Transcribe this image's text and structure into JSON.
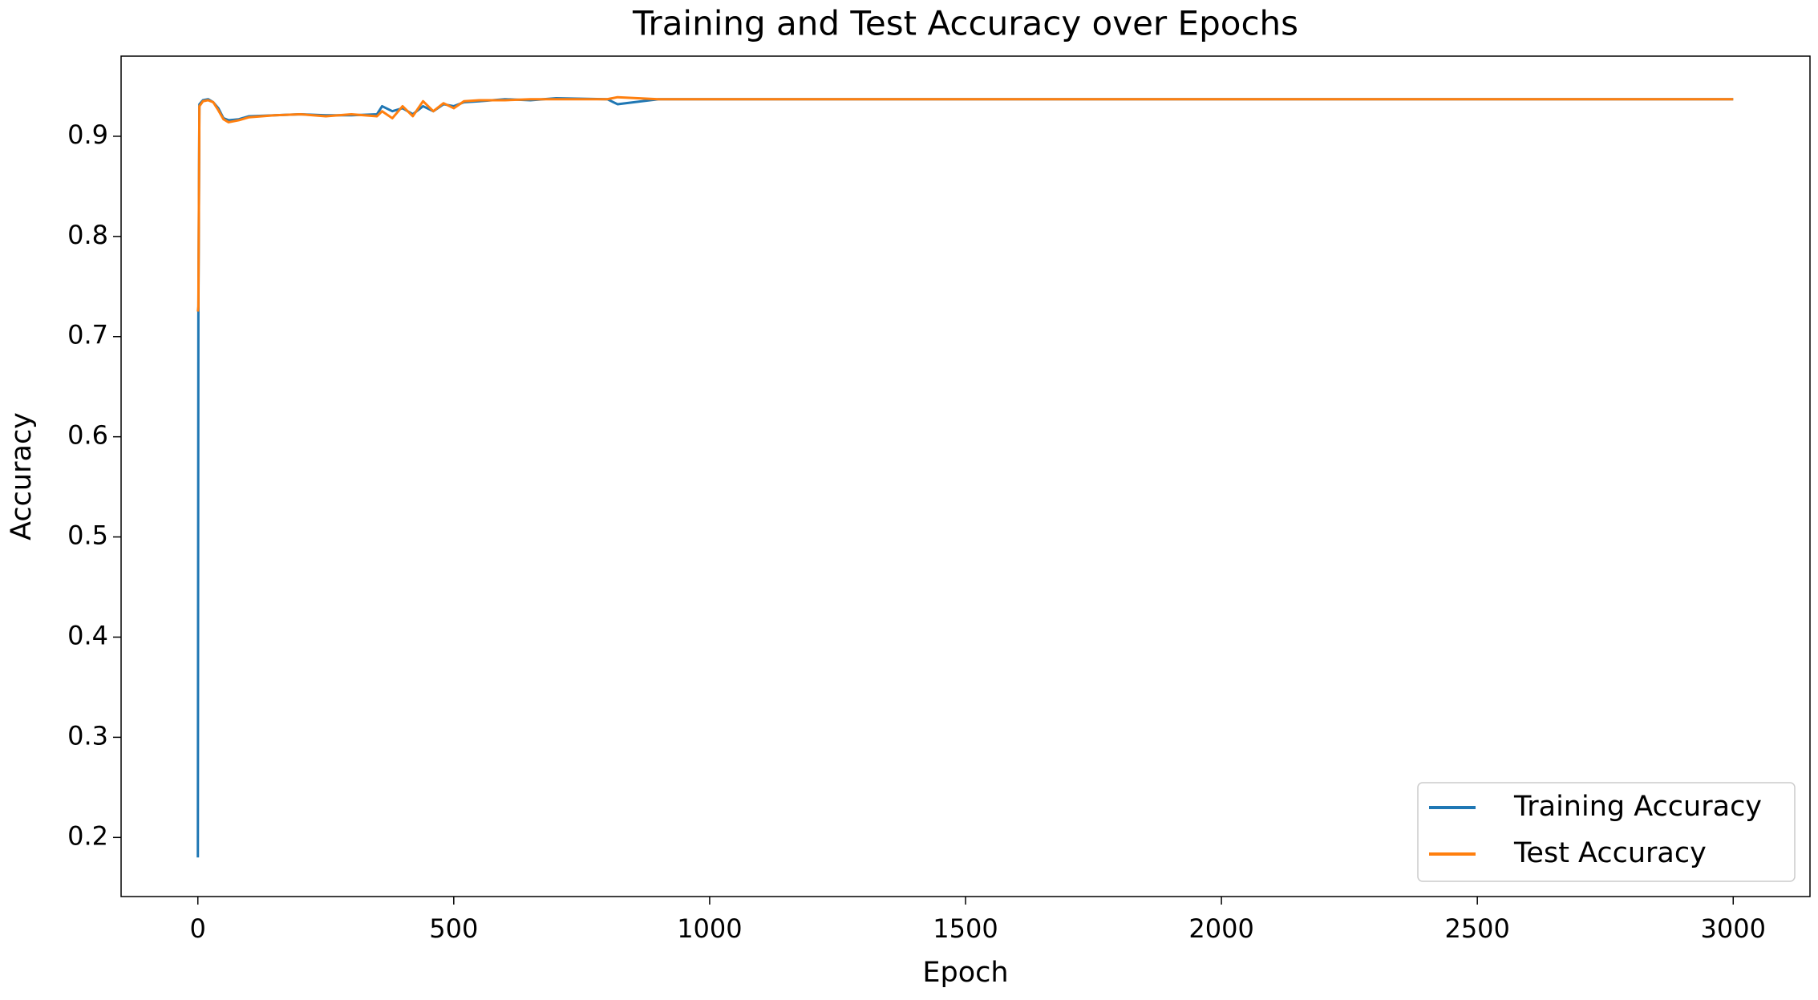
{
  "chart_data": {
    "type": "line",
    "title": "Training and Test Accuracy over Epochs",
    "xlabel": "Epoch",
    "ylabel": "Accuracy",
    "x": [
      0,
      1,
      3,
      10,
      20,
      30,
      40,
      50,
      60,
      80,
      100,
      150,
      200,
      250,
      300,
      350,
      360,
      380,
      400,
      420,
      440,
      460,
      480,
      500,
      520,
      550,
      600,
      650,
      700,
      800,
      820,
      900,
      1000,
      1200,
      1500,
      1800,
      2000,
      2200,
      2500,
      2800,
      3000
    ],
    "series": [
      {
        "name": "Training Accuracy",
        "color": "#1f77b4",
        "values": [
          0.18,
          0.72,
          0.932,
          0.936,
          0.937,
          0.934,
          0.928,
          0.918,
          0.916,
          0.917,
          0.92,
          0.921,
          0.922,
          0.921,
          0.921,
          0.922,
          0.93,
          0.925,
          0.928,
          0.922,
          0.93,
          0.925,
          0.932,
          0.93,
          0.934,
          0.935,
          0.937,
          0.936,
          0.938,
          0.937,
          0.932,
          0.937,
          0.937,
          0.937,
          0.937,
          0.937,
          0.937,
          0.937,
          0.937,
          0.937,
          0.937
        ]
      },
      {
        "name": "Test Accuracy",
        "color": "#ff7f0e",
        "values": [
          0.725,
          0.73,
          0.93,
          0.935,
          0.936,
          0.934,
          0.926,
          0.917,
          0.914,
          0.916,
          0.919,
          0.921,
          0.922,
          0.92,
          0.922,
          0.92,
          0.925,
          0.918,
          0.93,
          0.92,
          0.935,
          0.925,
          0.933,
          0.928,
          0.935,
          0.936,
          0.936,
          0.937,
          0.937,
          0.937,
          0.939,
          0.937,
          0.937,
          0.937,
          0.937,
          0.937,
          0.937,
          0.937,
          0.937,
          0.937,
          0.937
        ]
      }
    ],
    "xlim": [
      -150,
      3150
    ],
    "ylim": [
      0.141,
      0.98
    ],
    "xticks": [
      0,
      500,
      1000,
      1500,
      2000,
      2500,
      3000
    ],
    "yticks": [
      0.2,
      0.3,
      0.4,
      0.5,
      0.6,
      0.7,
      0.8,
      0.9
    ],
    "grid": false,
    "legend": "lower right"
  }
}
